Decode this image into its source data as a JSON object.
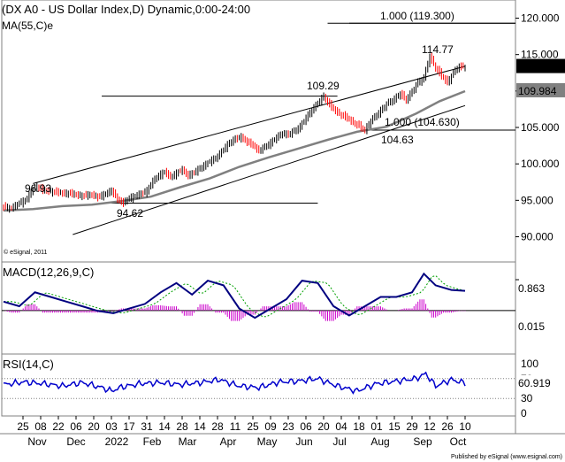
{
  "header": {
    "title": "(DX A0 - US Dollar Index,D) Dynamic,0:00-24:00",
    "ma_label": "MA(55,C)e",
    "copyright": "© eSignal, 2011"
  },
  "footer": {
    "credit": "Published by eSignal (www.esignal.com)"
  },
  "colors": {
    "price_up": "#000000",
    "price_down": "#ff0000",
    "ma_line": "#808080",
    "macd_line": "#000080",
    "macd_signal": "#00a000",
    "macd_hist": "#cc00cc",
    "rsi_line": "#0000cc",
    "fib_text": "#000080",
    "badge_dark": "#000000",
    "badge_grey": "#808080",
    "badge_teal": "#008080"
  },
  "annotations": {
    "fib_top": "1.000 (119.300)",
    "fib_mid": "1.000 (104.630)",
    "peak": "114.77",
    "jul_high": "109.29",
    "aug_low": "104.63",
    "nov_high": "96.93",
    "jan_low": "94.62"
  },
  "badges": {
    "price": "113.311",
    "ma": "109.984",
    "macd": "0.863",
    "macd_zero": "0.015",
    "rsi": "60.919"
  },
  "macd_panel": {
    "label": "MACD(12,26,9,C)"
  },
  "rsi_panel": {
    "label": "RSI(14,C)"
  },
  "chart_data": {
    "type": "candlestick",
    "title": "(DX A0 - US Dollar Index,D) Dynamic,0:00-24:00",
    "y_ticks": [
      "120.000",
      "115.000",
      "110.000",
      "105.000",
      "100.000",
      "95.000",
      "90.000"
    ],
    "ylim": [
      88.5,
      121.0
    ],
    "x_ticks": [
      "25",
      "08",
      "22",
      "06",
      "20",
      "03",
      "17",
      "31",
      "14",
      "28",
      "14",
      "28",
      "11",
      "25",
      "09",
      "23",
      "06",
      "20",
      "04",
      "18",
      "01",
      "15",
      "29",
      "12",
      "26",
      "10"
    ],
    "x_month_labels": [
      "Nov",
      "Dec",
      "2022",
      "Feb",
      "Mar",
      "Apr",
      "May",
      "Jun",
      "Jul",
      "Aug",
      "Sep",
      "Oct"
    ],
    "price_path": [
      [
        0,
        94.1
      ],
      [
        4,
        93.9
      ],
      [
        8,
        94.6
      ],
      [
        12,
        95.2
      ],
      [
        15,
        96.6
      ],
      [
        17,
        96.93
      ],
      [
        20,
        96.4
      ],
      [
        25,
        96.2
      ],
      [
        30,
        96.0
      ],
      [
        35,
        95.9
      ],
      [
        40,
        95.6
      ],
      [
        45,
        95.8
      ],
      [
        48,
        95.4
      ],
      [
        52,
        95.9
      ],
      [
        55,
        96.3
      ],
      [
        58,
        95.2
      ],
      [
        61,
        94.62
      ],
      [
        64,
        95.3
      ],
      [
        67,
        95.6
      ],
      [
        70,
        95.9
      ],
      [
        73,
        96.3
      ],
      [
        76,
        97.6
      ],
      [
        79,
        98.4
      ],
      [
        82,
        98.9
      ],
      [
        85,
        98.2
      ],
      [
        88,
        98.7
      ],
      [
        91,
        99.2
      ],
      [
        94,
        98.4
      ],
      [
        97,
        98.8
      ],
      [
        100,
        99.4
      ],
      [
        103,
        99.9
      ],
      [
        106,
        100.5
      ],
      [
        109,
        101.0
      ],
      [
        112,
        102.0
      ],
      [
        115,
        102.9
      ],
      [
        118,
        103.4
      ],
      [
        121,
        103.7
      ],
      [
        124,
        103.0
      ],
      [
        127,
        102.6
      ],
      [
        130,
        101.8
      ],
      [
        133,
        102.3
      ],
      [
        136,
        102.9
      ],
      [
        139,
        103.6
      ],
      [
        142,
        104.2
      ],
      [
        145,
        104.0
      ],
      [
        148,
        104.5
      ],
      [
        151,
        105.1
      ],
      [
        154,
        106.3
      ],
      [
        157,
        107.4
      ],
      [
        160,
        108.3
      ],
      [
        163,
        109.29
      ],
      [
        166,
        108.1
      ],
      [
        169,
        107.3
      ],
      [
        172,
        106.7
      ],
      [
        175,
        106.3
      ],
      [
        178,
        105.7
      ],
      [
        181,
        105.2
      ],
      [
        184,
        104.63
      ],
      [
        187,
        105.9
      ],
      [
        190,
        106.7
      ],
      [
        193,
        107.6
      ],
      [
        196,
        108.4
      ],
      [
        199,
        108.9
      ],
      [
        202,
        109.6
      ],
      [
        205,
        108.8
      ],
      [
        208,
        109.9
      ],
      [
        211,
        111.2
      ],
      [
        214,
        111.8
      ],
      [
        217,
        114.77
      ],
      [
        220,
        113.2
      ],
      [
        223,
        112.1
      ],
      [
        226,
        111.2
      ],
      [
        229,
        112.5
      ],
      [
        232,
        113.4
      ],
      [
        235,
        113.311
      ]
    ],
    "ma_path": [
      [
        0,
        93.6
      ],
      [
        15,
        93.8
      ],
      [
        30,
        94.2
      ],
      [
        45,
        94.4
      ],
      [
        60,
        94.9
      ],
      [
        75,
        95.5
      ],
      [
        90,
        96.8
      ],
      [
        105,
        98.0
      ],
      [
        120,
        99.6
      ],
      [
        135,
        100.9
      ],
      [
        150,
        102.1
      ],
      [
        165,
        103.3
      ],
      [
        180,
        104.4
      ],
      [
        195,
        105.1
      ],
      [
        210,
        106.9
      ],
      [
        222,
        108.6
      ],
      [
        235,
        109.984
      ]
    ],
    "channel_upper": [
      [
        15,
        97.3
      ],
      [
        235,
        113.4
      ]
    ],
    "channel_lower": [
      [
        15,
        90.3
      ],
      [
        235,
        108.0
      ]
    ],
    "levels": [
      {
        "label": "109.29",
        "y": 109.29,
        "x_from": 50,
        "x_to": 170
      },
      {
        "label": "104.63",
        "y": 104.63,
        "x_from": 184,
        "x_to": 235
      },
      {
        "label": "94.62",
        "y": 94.62,
        "x_from": 55,
        "x_to": 160
      },
      {
        "label": "119.300",
        "y": 119.3,
        "x_from": 165,
        "x_to": 235
      }
    ],
    "macd": {
      "ylim": [
        -1.4,
        1.8
      ],
      "zero": 0.015,
      "last": 0.863,
      "series": [
        [
          0,
          0.4
        ],
        [
          8,
          0.2
        ],
        [
          16,
          0.8
        ],
        [
          24,
          0.6
        ],
        [
          32,
          0.4
        ],
        [
          40,
          0.2
        ],
        [
          48,
          0.0
        ],
        [
          56,
          -0.1
        ],
        [
          64,
          0.1
        ],
        [
          72,
          0.3
        ],
        [
          80,
          0.8
        ],
        [
          88,
          1.2
        ],
        [
          96,
          0.7
        ],
        [
          104,
          1.3
        ],
        [
          112,
          1.1
        ],
        [
          120,
          0.1
        ],
        [
          128,
          -0.3
        ],
        [
          136,
          0.1
        ],
        [
          144,
          0.5
        ],
        [
          152,
          1.3
        ],
        [
          160,
          1.2
        ],
        [
          168,
          0.2
        ],
        [
          176,
          -0.2
        ],
        [
          184,
          0.2
        ],
        [
          192,
          0.6
        ],
        [
          200,
          0.6
        ],
        [
          208,
          0.8
        ],
        [
          214,
          1.6
        ],
        [
          220,
          1.1
        ],
        [
          228,
          0.9
        ],
        [
          235,
          0.863
        ]
      ]
    },
    "rsi": {
      "ylim": [
        0,
        100
      ],
      "ticks": [
        "100",
        "70",
        "30",
        "0"
      ],
      "last": 60.919,
      "series": [
        [
          0,
          58
        ],
        [
          10,
          63
        ],
        [
          20,
          60
        ],
        [
          30,
          55
        ],
        [
          40,
          62
        ],
        [
          50,
          52
        ],
        [
          55,
          45
        ],
        [
          60,
          53
        ],
        [
          70,
          60
        ],
        [
          80,
          62
        ],
        [
          90,
          58
        ],
        [
          100,
          62
        ],
        [
          110,
          68
        ],
        [
          120,
          55
        ],
        [
          130,
          52
        ],
        [
          140,
          63
        ],
        [
          150,
          65
        ],
        [
          160,
          70
        ],
        [
          170,
          55
        ],
        [
          180,
          45
        ],
        [
          190,
          60
        ],
        [
          200,
          65
        ],
        [
          210,
          70
        ],
        [
          215,
          80
        ],
        [
          220,
          55
        ],
        [
          228,
          68
        ],
        [
          235,
          60.919
        ]
      ]
    }
  }
}
